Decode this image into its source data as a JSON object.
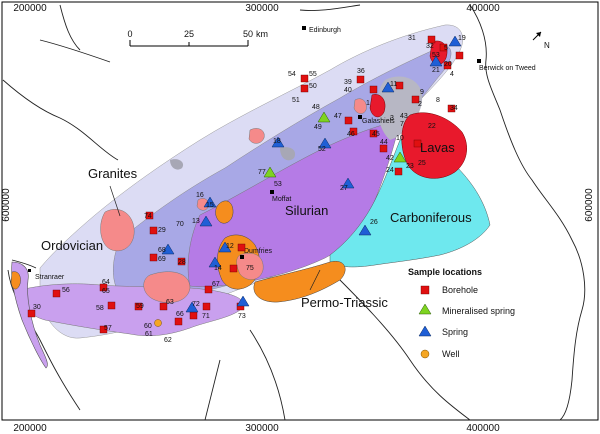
{
  "grid_labels": {
    "x_top": [
      "200000",
      "300000",
      "400000"
    ],
    "x_bottom": [
      "200000",
      "300000",
      "400000"
    ],
    "y_left": "600000",
    "y_right": "600000"
  },
  "scale_bar": {
    "ticks": [
      "0",
      "25",
      "50"
    ],
    "unit": "km"
  },
  "north_arrow": {
    "label": "N"
  },
  "towns": [
    "Edinburgh",
    "Berwick on Tweed",
    "Galashiels",
    "Moffat",
    "Dumfries",
    "Stranraer"
  ],
  "regions": [
    "Granites",
    "Ordovician",
    "Silurian",
    "Carboniferous",
    "Lavas",
    "Permo-Triassic"
  ],
  "legend": {
    "title": "Sample locations",
    "items": [
      {
        "label": "Borehole",
        "symbol": "square",
        "color": "#e01010"
      },
      {
        "label": "Mineralised spring",
        "symbol": "triangle",
        "color": "#7ed321"
      },
      {
        "label": "Spring",
        "symbol": "triangle",
        "color": "#1f5fd6"
      },
      {
        "label": "Well",
        "symbol": "circle",
        "color": "#f5a623"
      }
    ]
  },
  "sample_labels": [
    "31",
    "32",
    "19",
    "5",
    "53",
    "20",
    "4",
    "55",
    "54",
    "50",
    "36",
    "39",
    "40",
    "11",
    "21",
    "51",
    "47",
    "1",
    "9",
    "2",
    "8",
    "34",
    "43",
    "48",
    "49",
    "45",
    "7",
    "52",
    "24",
    "23",
    "22",
    "46",
    "44",
    "10",
    "42",
    "25",
    "18",
    "77",
    "53",
    "27",
    "16",
    "15",
    "74",
    "13",
    "29",
    "70",
    "68",
    "69",
    "28",
    "12",
    "14",
    "75",
    "67",
    "26",
    "64",
    "65",
    "56",
    "58",
    "30",
    "59",
    "60",
    "61",
    "62",
    "63",
    "66",
    "72",
    "71",
    "57",
    "73",
    "3"
  ],
  "colors": {
    "ordovician": "#dcdcf4",
    "silurian": "#a8a8e6",
    "purple": "#b57be6",
    "carboniferous": "#6ee8ee",
    "permo_triassic": "#f58d1e",
    "granite": "#f58a8a",
    "lavas": "#e8192c",
    "ocean_line": "#222222"
  }
}
